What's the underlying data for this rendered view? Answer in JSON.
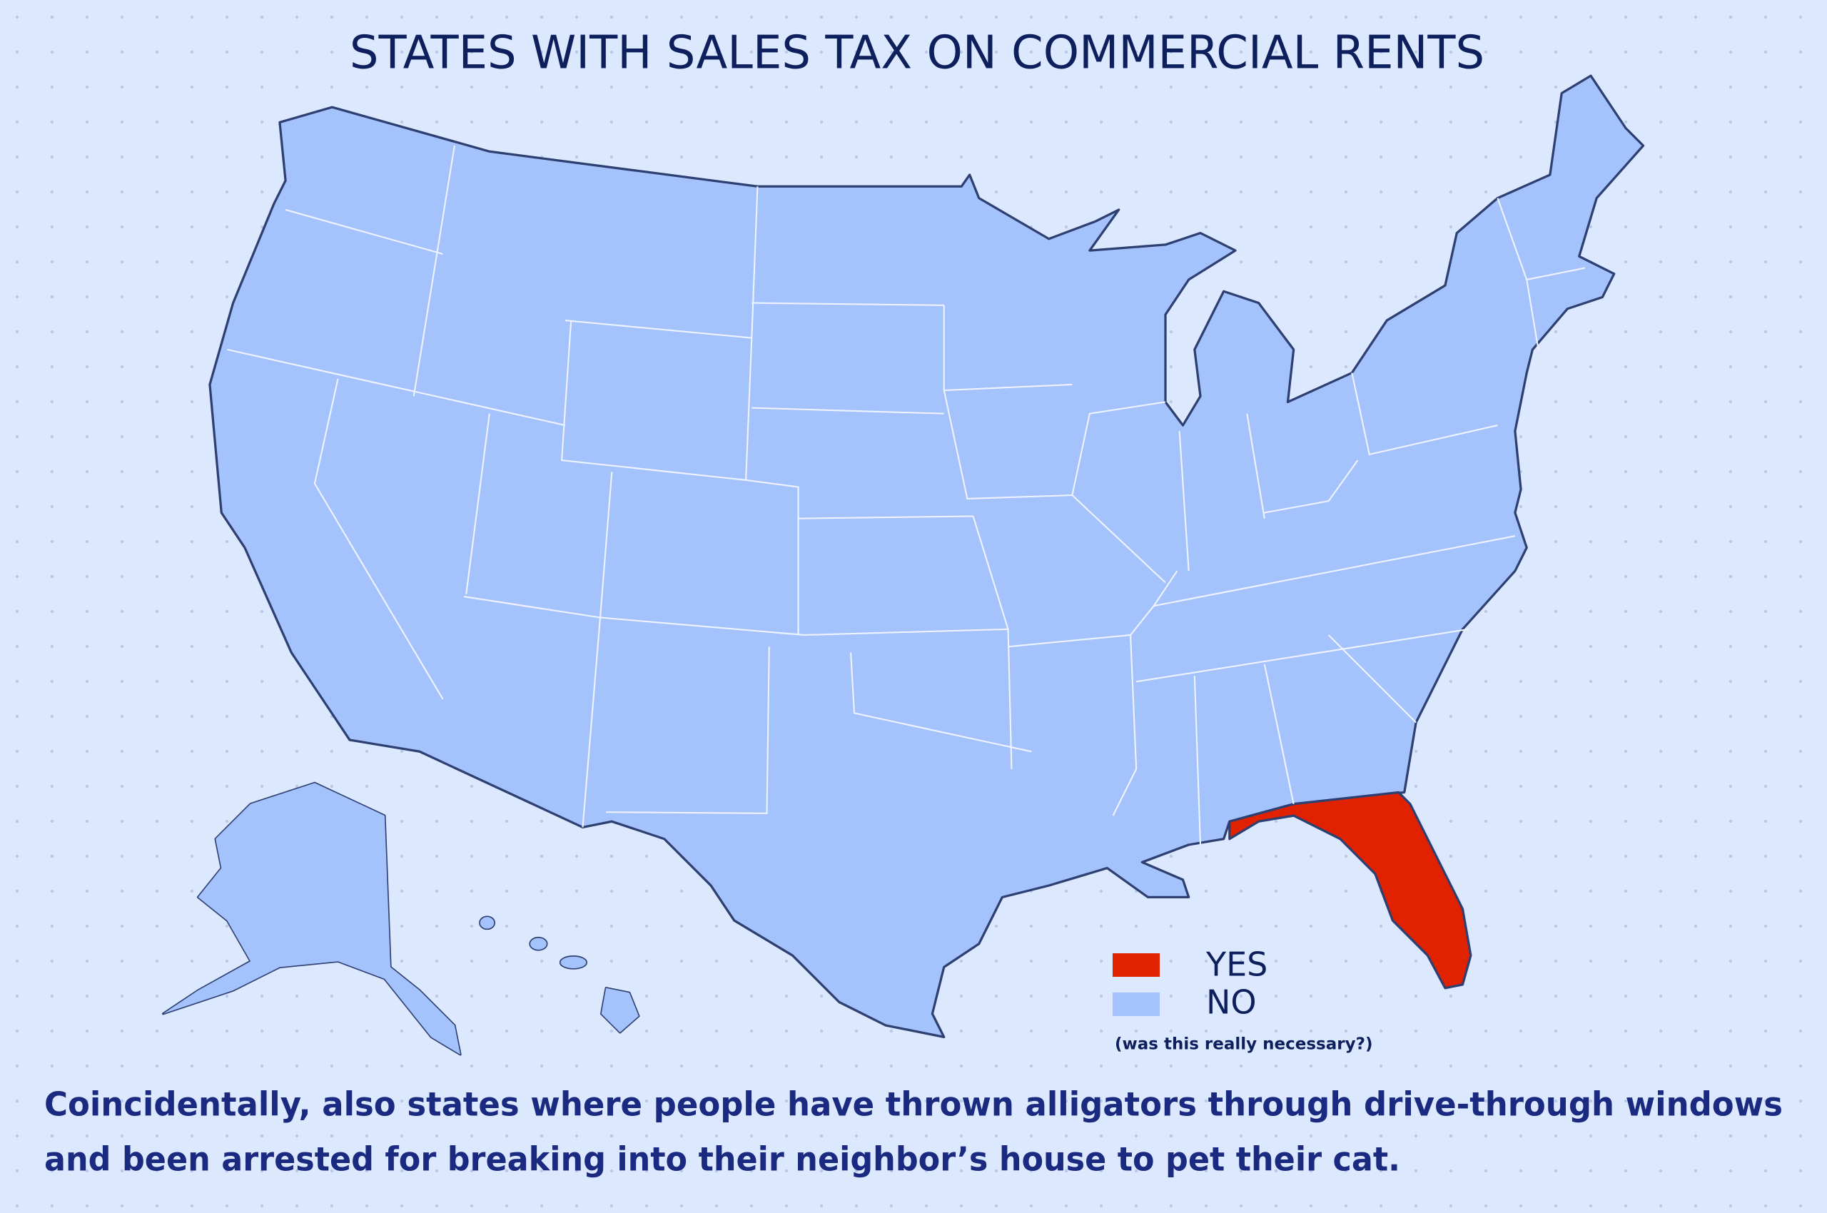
{
  "title": "STATES WITH SALES TAX ON COMMERCIAL RENTS",
  "legend": [
    {
      "label": "YES",
      "color": "#e02200"
    },
    {
      "label": "NO",
      "color": "#a4c2fb"
    }
  ],
  "legend_note": "(was this really necessary?)",
  "caption": [
    "Coincidentally, also states where people have thrown alligators through drive-through windows",
    "and been arrested for breaking into their neighbor’s house to pet their cat."
  ]
}
